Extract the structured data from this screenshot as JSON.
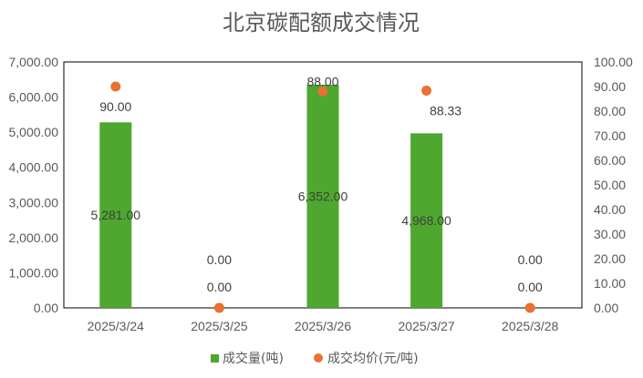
{
  "chart_data": {
    "type": "bar+scatter",
    "title": "北京碳配额成交情况",
    "categories": [
      "2025/3/24",
      "2025/3/25",
      "2025/3/26",
      "2025/3/27",
      "2025/3/28"
    ],
    "series": [
      {
        "name": "成交量(吨)",
        "type": "bar",
        "axis": "left",
        "color": "#4EA72E",
        "values": [
          5281.0,
          0.0,
          6352.0,
          4968.0,
          0.0
        ],
        "labels": [
          "5,281.00",
          "0.00",
          "6,352.00",
          "4,968.00",
          "0.00"
        ]
      },
      {
        "name": "成交均价(元/吨)",
        "type": "scatter",
        "axis": "right",
        "color": "#E97132",
        "values": [
          90.0,
          0.0,
          88.0,
          88.33,
          0.0
        ],
        "labels": [
          "90.00",
          "0.00",
          "88.00",
          "88.33",
          "0.00"
        ]
      }
    ],
    "y_left": {
      "range": [
        0,
        7000
      ],
      "ticks": [
        "0.00",
        "1,000.00",
        "2,000.00",
        "3,000.00",
        "4,000.00",
        "5,000.00",
        "6,000.00",
        "7,000.00"
      ]
    },
    "y_right": {
      "range": [
        0,
        100
      ],
      "ticks": [
        "0.00",
        "10.00",
        "20.00",
        "30.00",
        "40.00",
        "50.00",
        "60.00",
        "70.00",
        "80.00",
        "90.00",
        "100.00"
      ]
    },
    "grid": false,
    "legend": "bottom"
  }
}
